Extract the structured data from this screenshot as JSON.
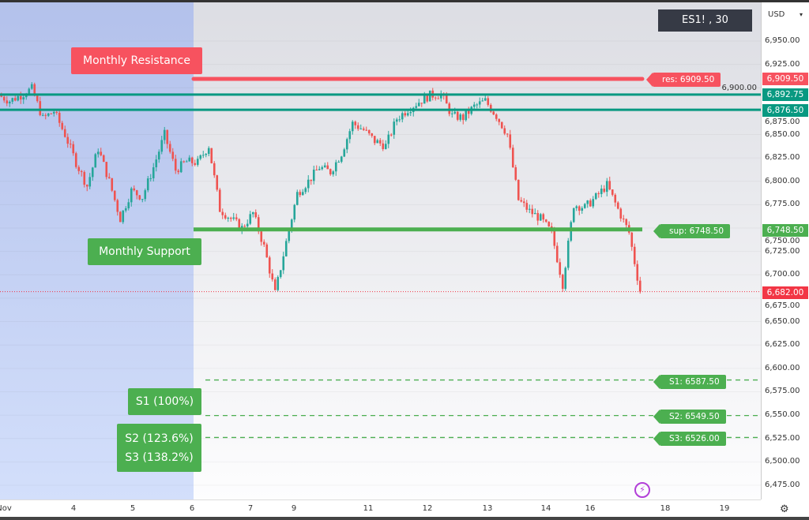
{
  "ticker": "ES1! , 30",
  "currency": "USD",
  "colors": {
    "resistance": "#f7525f",
    "support": "#4caf50",
    "teal": "#089981",
    "current": "#f23645",
    "dashed": "#4caf50",
    "shade": "#b3c1eb"
  },
  "annotations": {
    "monthly_resistance": "Monthly Resistance",
    "monthly_support": "Monthly Support",
    "s1_pct": "S1 (100%)",
    "s2_pct": "S2 (123.6%)",
    "s3_pct": "S3 (138.2%)",
    "res_tag": "res: 6909.50",
    "sup_tag": "sup: 6748.50",
    "s1_tag": "S1: 6587.50",
    "s2_tag": "S2: 6549.50",
    "s3_tag": "S3: 6526.00"
  },
  "price_tags": {
    "res": "6,909.50",
    "green1": "6,892.75",
    "green2": "6,876.50",
    "sup": "6,748.50",
    "last": "6,682.00"
  },
  "chart_data": {
    "type": "candlestick",
    "ylim": [
      6465,
      6970
    ],
    "y_ticks": [
      "6,950.00",
      "6,925.00",
      "6,900.00",
      "6,875.00",
      "6,850.00",
      "6,825.00",
      "6,800.00",
      "6,775.00",
      "6,750.00",
      "6,725.00",
      "6,700.00",
      "6,675.00",
      "6,650.00",
      "6,625.00",
      "6,600.00",
      "6,575.00",
      "6,550.00",
      "6,525.00",
      "6,500.00",
      "6,475.00"
    ],
    "x_ticks": [
      "Nov",
      "4",
      "5",
      "6",
      "7",
      "9",
      "11",
      "12",
      "13",
      "14",
      "16",
      "18",
      "19"
    ],
    "closes_approx": [
      6892,
      6886,
      6892,
      6899,
      6867,
      6875,
      6850,
      6820,
      6795,
      6835,
      6800,
      6760,
      6790,
      6783,
      6815,
      6850,
      6812,
      6821,
      6820,
      6838,
      6770,
      6760,
      6750,
      6766,
      6730,
      6680,
      6735,
      6787,
      6800,
      6815,
      6810,
      6830,
      6862,
      6855,
      6843,
      6838,
      6867,
      6877,
      6885,
      6892,
      6893,
      6870,
      6868,
      6880,
      6886,
      6870,
      6850,
      6780,
      6768,
      6760,
      6745,
      6690,
      6775,
      6772,
      6783,
      6796,
      6770,
      6745,
      6682
    ],
    "levels": {
      "resistance": 6909.5,
      "green_upper": 6892.75,
      "green_lower": 6876.5,
      "support": 6748.5,
      "s1": 6587.5,
      "s2": 6549.5,
      "s3": 6526.0,
      "last": 6682.0
    }
  }
}
